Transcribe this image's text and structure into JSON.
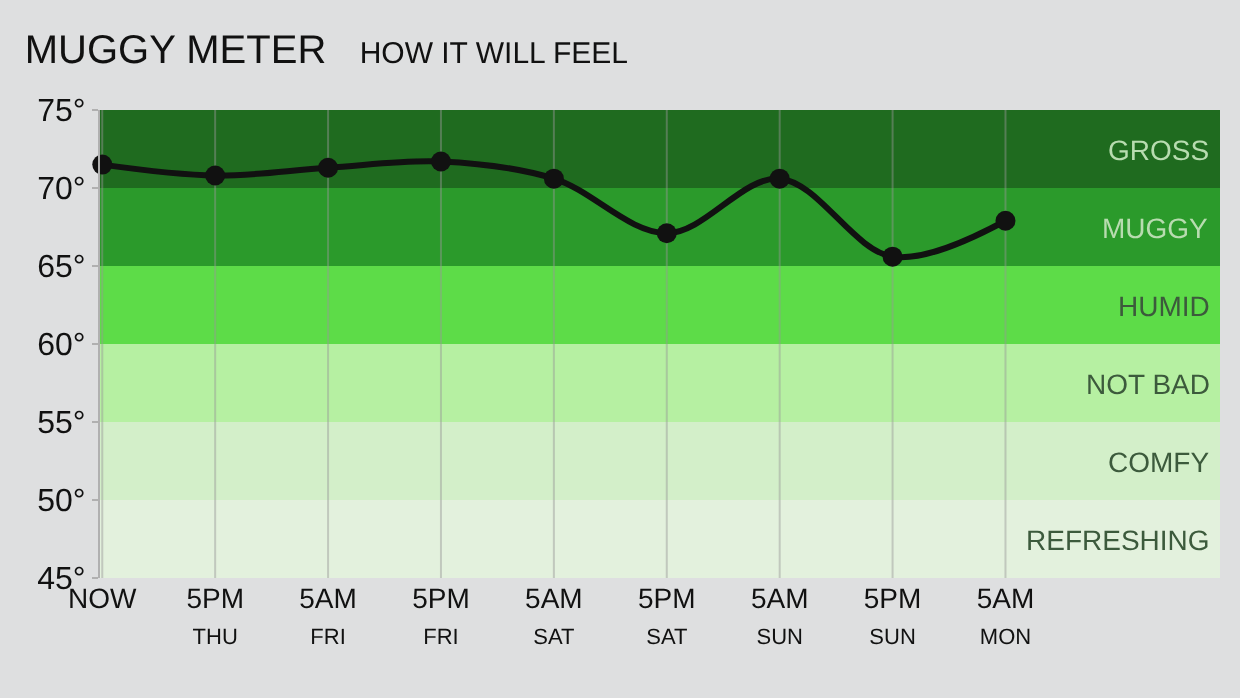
{
  "chart_data": {
    "type": "line",
    "title": "MUGGY METER",
    "subtitle": "HOW IT WILL FEEL",
    "categories": [
      "NOW",
      "5PM\nTHU",
      "5AM\nFRI",
      "5PM\nFRI",
      "5AM\nSAT",
      "5PM\nSAT",
      "5AM\nSUN",
      "5PM\nSUN",
      "5AM\nMON"
    ],
    "series": [
      {
        "color": "#111111",
        "values": [
          71.5,
          70.8,
          71.3,
          71.7,
          70.6,
          67.1,
          70.6,
          65.6,
          67.9
        ]
      }
    ],
    "ylim": [
      45,
      75
    ],
    "yticks": [
      {
        "value": 45,
        "label": "45°"
      },
      {
        "value": 50,
        "label": "50°"
      },
      {
        "value": 55,
        "label": "55°"
      },
      {
        "value": 60,
        "label": "60°"
      },
      {
        "value": 65,
        "label": "65°"
      },
      {
        "value": 70,
        "label": "70°"
      },
      {
        "value": 75,
        "label": "75°"
      }
    ],
    "bands": [
      {
        "axis": "y",
        "from": 70,
        "to": 75,
        "label": "GROSS",
        "color": "#1f6b1f"
      },
      {
        "axis": "y",
        "from": 65,
        "to": 70,
        "label": "MUGGY",
        "color": "#2b9a2b"
      },
      {
        "axis": "y",
        "from": 60,
        "to": 65,
        "label": "HUMID",
        "color": "#5ddc48"
      },
      {
        "axis": "y",
        "from": 55,
        "to": 60,
        "label": "NOT BAD",
        "color": "#b6f0a2"
      },
      {
        "axis": "y",
        "from": 50,
        "to": 55,
        "label": "COMFY",
        "color": "#d3efc9"
      },
      {
        "axis": "y",
        "from": 45,
        "to": 50,
        "label": "REFRESHING",
        "color": "#e3f1dd"
      }
    ],
    "grid": "x",
    "marker": "circle",
    "line_style": "solid"
  }
}
